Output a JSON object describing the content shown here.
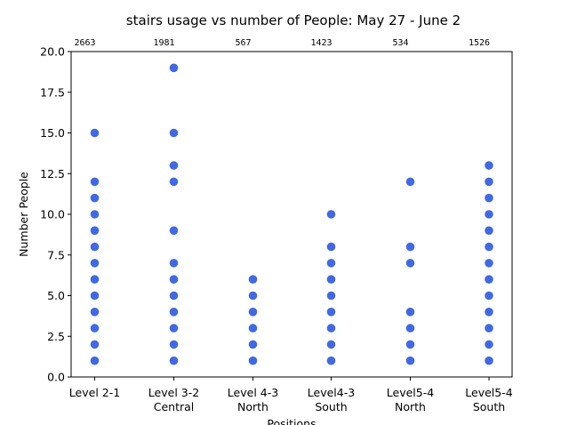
{
  "chart_data": {
    "type": "scatter",
    "title": "stairs usage vs number of People:  May 27 - June 2",
    "xlabel": "Positions",
    "ylabel": "Number People",
    "ylim": [
      0,
      20
    ],
    "yticks": [
      "0.0",
      "2.5",
      "5.0",
      "7.5",
      "10.0",
      "12.5",
      "15.0",
      "17.5",
      "20.0"
    ],
    "grid": false,
    "marker_color": "#4169e1",
    "categories": [
      {
        "line1": "Level 2-1",
        "line2": "",
        "total": "2663",
        "values": [
          1,
          2,
          3,
          4,
          5,
          6,
          7,
          8,
          9,
          10,
          11,
          12,
          15
        ]
      },
      {
        "line1": "Level 3-2",
        "line2": "Central",
        "total": "1981",
        "values": [
          1,
          2,
          3,
          4,
          5,
          6,
          7,
          9,
          12,
          13,
          15,
          19
        ]
      },
      {
        "line1": "Level 4-3",
        "line2": "North",
        "total": "567",
        "values": [
          1,
          2,
          3,
          4,
          5,
          6
        ]
      },
      {
        "line1": "Level4-3",
        "line2": "South",
        "total": "1423",
        "values": [
          1,
          2,
          3,
          4,
          5,
          6,
          7,
          8,
          10
        ]
      },
      {
        "line1": "Level5-4",
        "line2": "North",
        "total": "534",
        "values": [
          1,
          2,
          3,
          4,
          7,
          8,
          12
        ]
      },
      {
        "line1": "Level5-4",
        "line2": "South",
        "total": "1526",
        "values": [
          1,
          2,
          3,
          4,
          5,
          6,
          7,
          8,
          9,
          10,
          11,
          12,
          13
        ]
      }
    ]
  }
}
